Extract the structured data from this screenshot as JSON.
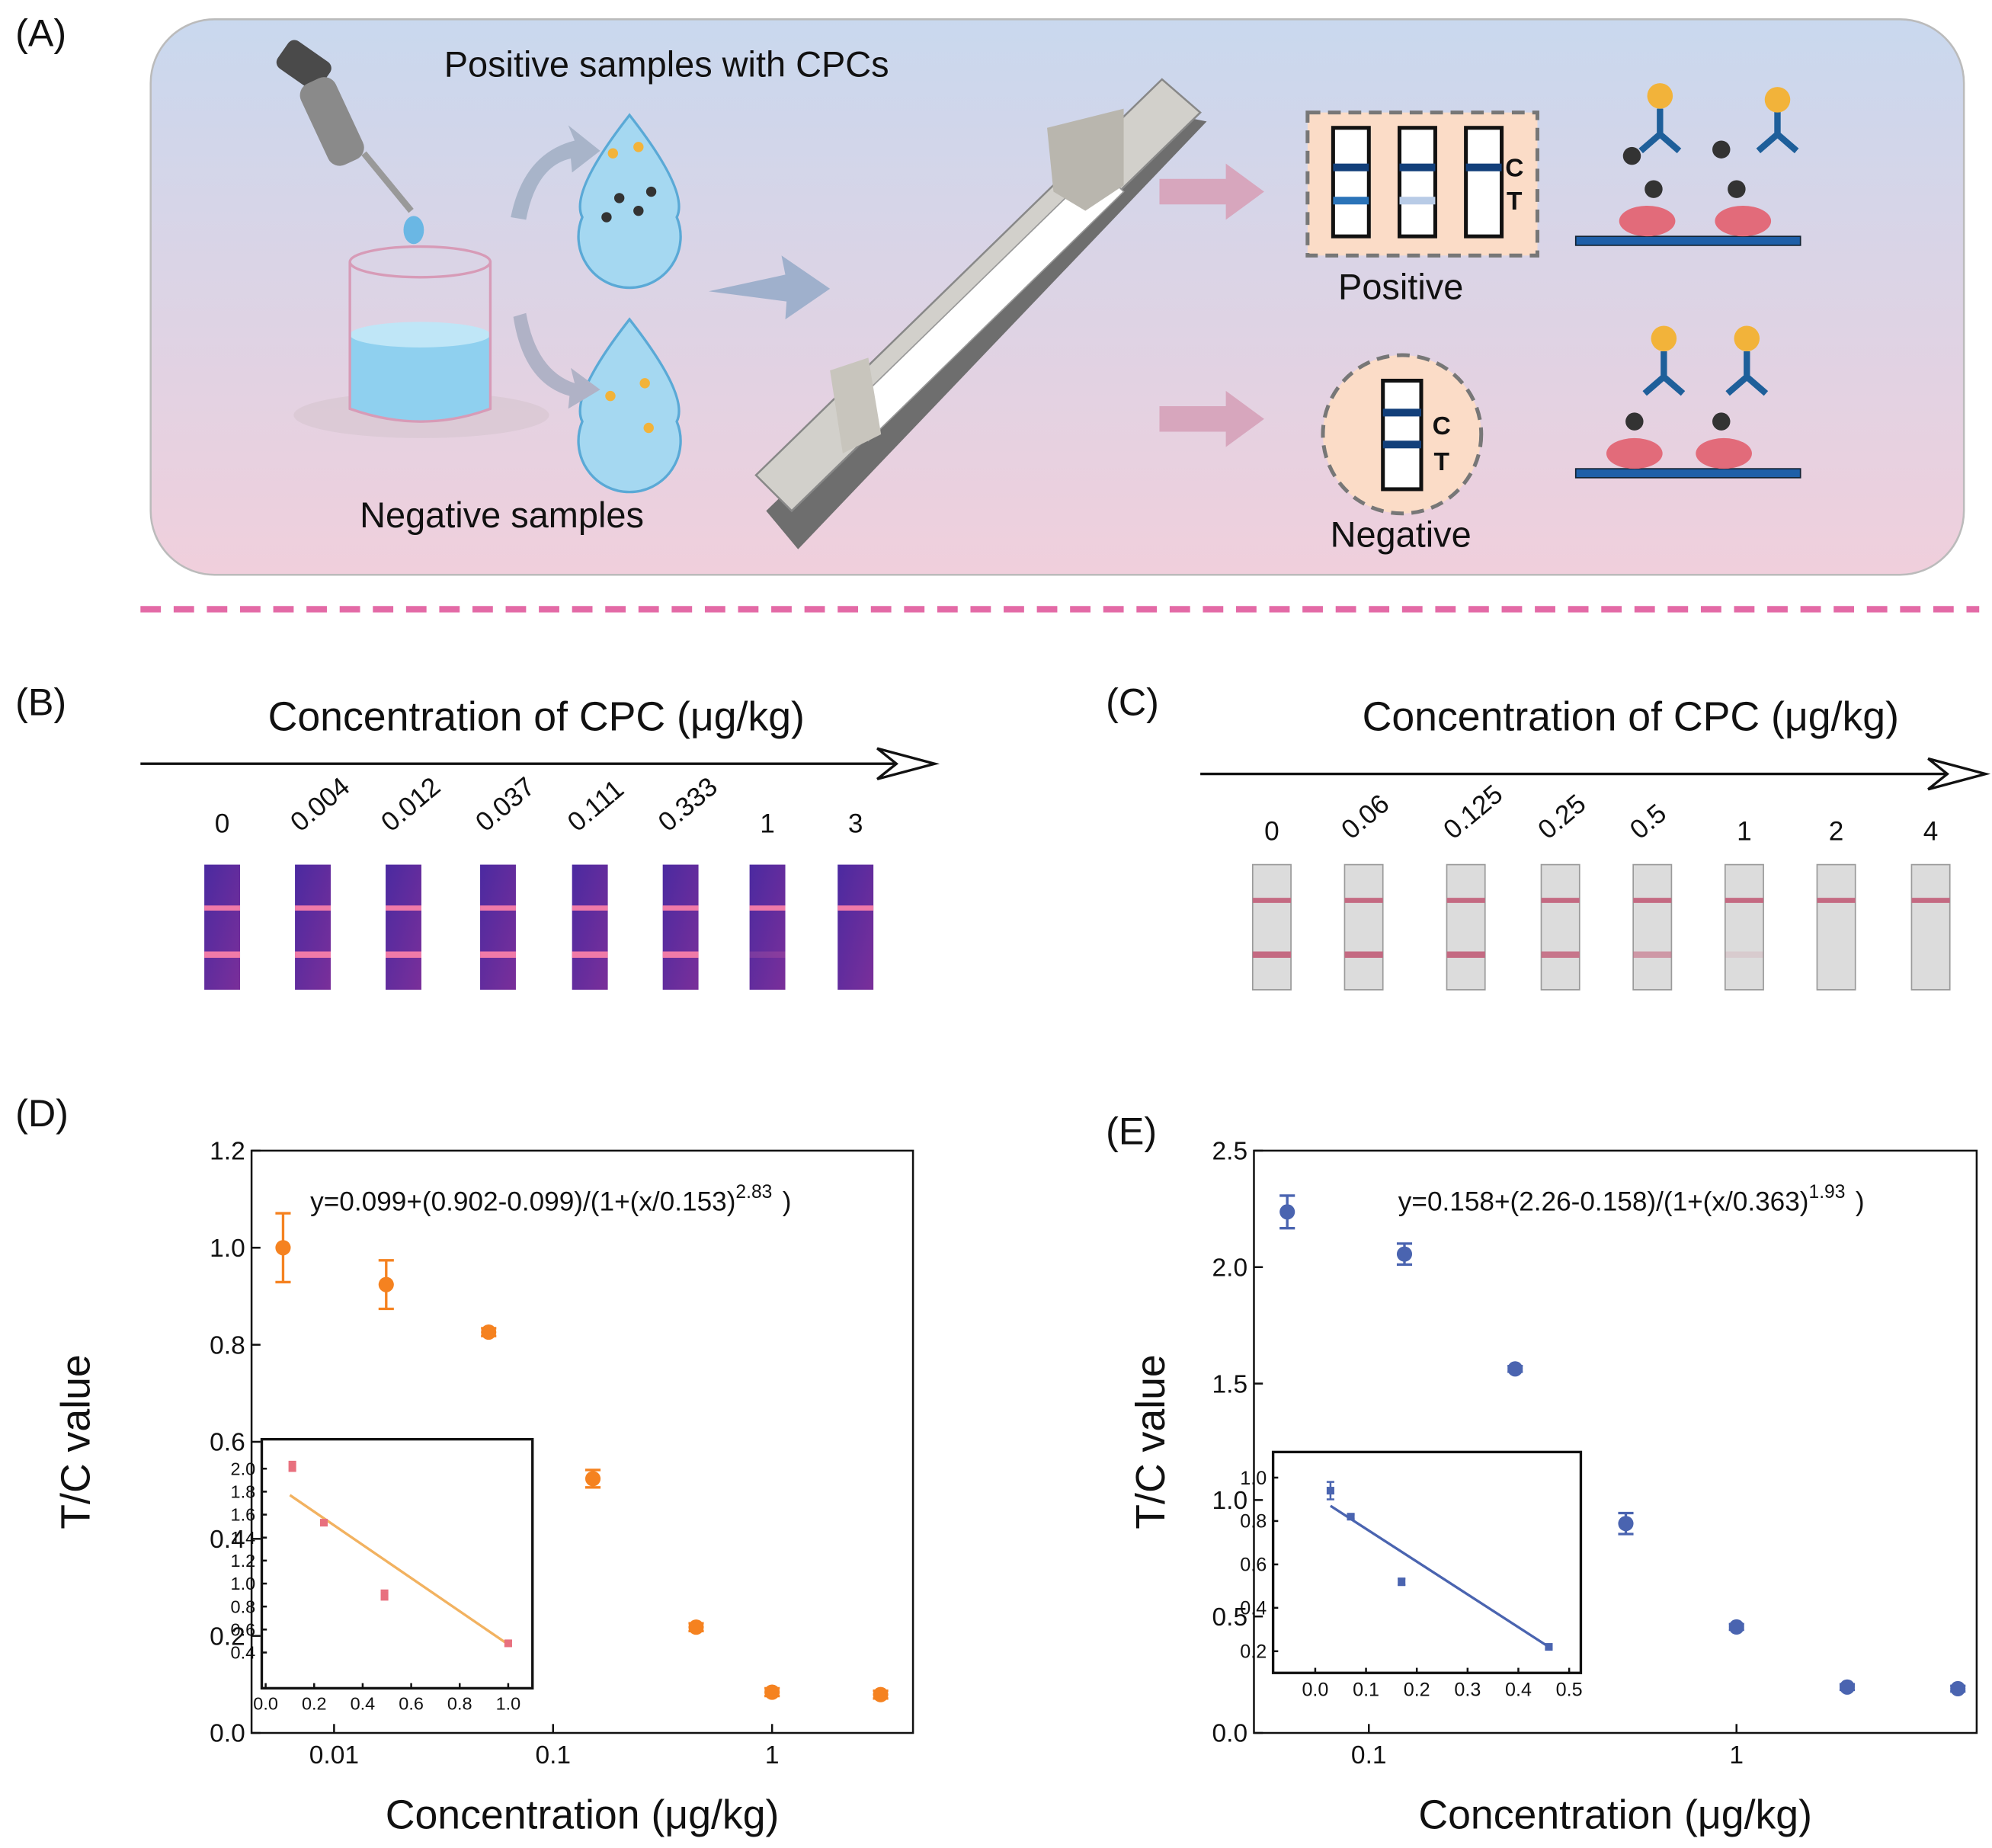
{
  "panel_labels": [
    "(A)",
    "(B)",
    "(C)",
    "(D)",
    "(E)"
  ],
  "scheme": {
    "positive_samples": "Positive samples with CPCs",
    "negative_samples": "Negative samples",
    "positive": "Positive",
    "negative": "Negative",
    "control_line": "C",
    "test_line": "T"
  },
  "strips": [
    {
      "title": "Concentration of CPC (μg/kg)",
      "concentrations": [
        "0",
        "0.004",
        "0.012",
        "0.037",
        "0.111",
        "0.333",
        "1",
        "3"
      ]
    },
    {
      "title": "Concentration of CPC (μg/kg)",
      "concentrations": [
        "0",
        "0.06",
        "0.125",
        "0.25",
        "0.5",
        "1",
        "2",
        "4"
      ]
    }
  ],
  "chart_data": [
    {
      "type": "scatter",
      "xlabel": "Concentration (μg/kg)",
      "ylabel": "T/C value",
      "annotation": "y=0.099+(0.902-0.099)/(1+(x/0.153)",
      "annotation_exponent": "2.83",
      "annotation_end": ")",
      "log_x": true,
      "xlim": [
        0.0042,
        4.4
      ],
      "xticks": [
        0.01,
        0.1,
        1
      ],
      "ylim": [
        0,
        1.2
      ],
      "yticks": [
        {
          "value": 0,
          "label": "0.0"
        },
        0.2,
        0.4,
        0.6,
        0.8,
        {
          "value": 1,
          "label": "1.0"
        },
        1.2
      ],
      "color": "#f58220",
      "x": [
        0.00585,
        0.0173,
        0.0508,
        0.152,
        0.45,
        1.0,
        3.13
      ],
      "values": [
        1.0,
        0.924,
        0.826,
        0.524,
        0.218,
        0.084,
        0.079
      ],
      "errors": [
        0.071,
        0.05,
        0.008,
        0.018,
        0.008,
        0.008,
        0.008
      ]
    },
    {
      "type": "scatter",
      "xlabel": "Concentration (μg/kg)",
      "ylabel": "T/C value",
      "annotation": "y=0.158+(2.26-0.158)/(1+(x/0.363)",
      "annotation_exponent": "1.93",
      "annotation_end": ")",
      "log_x": true,
      "xlim": [
        0.0487,
        4.5
      ],
      "xticks": [
        0.1,
        1
      ],
      "ylim": [
        0,
        2.5
      ],
      "yticks": [
        {
          "value": 0,
          "label": "0.0"
        },
        0.5,
        {
          "value": 1,
          "label": "1.0"
        },
        1.5,
        {
          "value": 2,
          "label": "2.0"
        },
        2.5
      ],
      "color": "#4a64b0",
      "x": [
        0.06,
        0.125,
        0.25,
        0.5,
        1,
        2,
        4
      ],
      "values": [
        2.237,
        2.056,
        1.563,
        0.899,
        0.455,
        0.197,
        0.19
      ],
      "errors": [
        0.07,
        0.045,
        0.012,
        0.045,
        0.012,
        0.012,
        0.012
      ]
    },
    {
      "type": "scatter",
      "log_x": false,
      "xlim": [
        -0.016,
        1.1
      ],
      "xticks": [
        {
          "value": 0,
          "label": "0.0"
        },
        0.2,
        0.4,
        0.6,
        0.8,
        {
          "value": 1,
          "label": "1.0"
        }
      ],
      "ylim": [
        0.089,
        2.256
      ],
      "yticks": [
        0.4,
        0.6,
        0.8,
        {
          "value": 1,
          "label": "1.0"
        },
        1.2,
        1.4,
        1.6,
        1.8,
        {
          "value": 2,
          "label": "2.0"
        }
      ],
      "color": "#e8707e",
      "x": [
        0.11,
        0.24,
        0.49,
        1.0
      ],
      "values": [
        2.02,
        1.53,
        0.9,
        0.48
      ],
      "errors": [
        0.04,
        0.02,
        0.04,
        0.02
      ],
      "fit_line": {
        "color": "#f2b260",
        "x": [
          0.1,
          1.0
        ],
        "values": [
          1.77,
          0.47
        ]
      }
    },
    {
      "type": "scatter",
      "log_x": false,
      "xlim": [
        -0.083,
        0.523
      ],
      "xticks": [
        {
          "value": 0,
          "label": "0.0"
        },
        0.1,
        0.2,
        0.3,
        0.4,
        0.5
      ],
      "ylim": [
        0.1,
        1.118
      ],
      "yticks": [
        0.2,
        0.4,
        0.6,
        0.8,
        {
          "value": 1,
          "label": "1.0"
        }
      ],
      "color": "#4a64b0",
      "x": [
        0.03,
        0.07,
        0.17,
        0.46
      ],
      "values": [
        0.94,
        0.82,
        0.52,
        0.22
      ],
      "errors": [
        0.04,
        0.01,
        0.015,
        0.01
      ],
      "fit_line": {
        "color": "#4a64b0",
        "x": [
          0.03,
          0.46
        ],
        "values": [
          0.87,
          0.22
        ]
      }
    }
  ]
}
